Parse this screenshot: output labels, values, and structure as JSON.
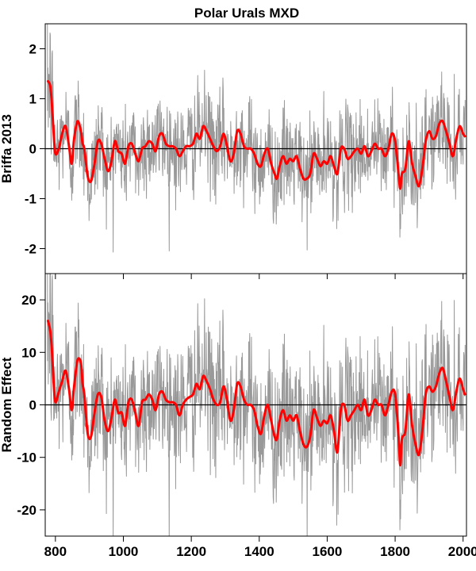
{
  "chart_data": [
    {
      "type": "line",
      "title": "Polar Urals MXD",
      "xlabel": "",
      "ylabel": "Briffa 2013",
      "xlim": [
        770,
        2010
      ],
      "ylim": [
        -2.5,
        2.5
      ],
      "xticks": [
        800,
        1000,
        1200,
        1400,
        1600,
        1800,
        2000
      ],
      "yticks": [
        -2,
        -1,
        0,
        1,
        2
      ],
      "zero_line": true,
      "grid": false,
      "series": [
        {
          "kind": "annual",
          "color": "#999999",
          "noise_sd": 0.5
        },
        {
          "kind": "smooth",
          "color": "#ff0000",
          "x": [
            778,
            785,
            790,
            795,
            800,
            810,
            820,
            830,
            840,
            848,
            855,
            865,
            875,
            880,
            885,
            895,
            905,
            915,
            925,
            935,
            945,
            955,
            965,
            975,
            985,
            995,
            1005,
            1015,
            1025,
            1035,
            1045,
            1055,
            1065,
            1075,
            1085,
            1095,
            1105,
            1115,
            1125,
            1135,
            1145,
            1155,
            1165,
            1175,
            1185,
            1195,
            1205,
            1215,
            1225,
            1235,
            1245,
            1255,
            1265,
            1275,
            1285,
            1295,
            1305,
            1315,
            1325,
            1335,
            1345,
            1355,
            1365,
            1375,
            1385,
            1395,
            1405,
            1415,
            1425,
            1435,
            1445,
            1452,
            1460,
            1470,
            1480,
            1490,
            1500,
            1510,
            1520,
            1530,
            1540,
            1550,
            1560,
            1570,
            1580,
            1590,
            1600,
            1610,
            1620,
            1630,
            1640,
            1650,
            1660,
            1670,
            1680,
            1690,
            1700,
            1710,
            1720,
            1730,
            1740,
            1750,
            1760,
            1770,
            1780,
            1790,
            1800,
            1810,
            1815,
            1820,
            1830,
            1840,
            1850,
            1860,
            1870,
            1880,
            1890,
            1900,
            1910,
            1920,
            1930,
            1940,
            1950,
            1960,
            1970,
            1980,
            1990,
            2000,
            2005
          ],
          "y": [
            1.35,
            1.25,
            0.85,
            0.3,
            -0.1,
            0.0,
            0.3,
            0.45,
            0.05,
            -0.3,
            0.2,
            0.55,
            0.35,
            0.1,
            0.0,
            -0.55,
            -0.65,
            -0.3,
            0.15,
            0.1,
            -0.2,
            -0.45,
            -0.25,
            0.15,
            -0.05,
            -0.1,
            -0.3,
            0.05,
            0.1,
            -0.1,
            -0.25,
            0.0,
            0.05,
            0.15,
            0.1,
            -0.05,
            0.25,
            0.3,
            0.1,
            0.05,
            0.05,
            0.0,
            -0.15,
            -0.05,
            0.05,
            0.05,
            0.1,
            0.3,
            0.2,
            0.45,
            0.35,
            0.2,
            0.05,
            -0.05,
            0.05,
            0.3,
            0.05,
            -0.25,
            -0.1,
            0.35,
            0.3,
            0.05,
            0.0,
            0.0,
            -0.1,
            -0.3,
            -0.35,
            -0.1,
            0.0,
            -0.3,
            -0.5,
            -0.6,
            -0.35,
            -0.15,
            -0.3,
            -0.2,
            -0.25,
            -0.15,
            -0.4,
            -0.6,
            -0.6,
            -0.5,
            -0.1,
            -0.2,
            -0.35,
            -0.25,
            -0.3,
            -0.15,
            -0.35,
            -0.5,
            0.0,
            0.0,
            -0.2,
            -0.15,
            -0.05,
            0.0,
            -0.1,
            0.05,
            -0.15,
            -0.05,
            0.1,
            0.0,
            0.0,
            -0.15,
            0.0,
            0.3,
            0.15,
            -0.5,
            -0.8,
            -0.5,
            -0.4,
            0.15,
            -0.3,
            -0.55,
            -0.75,
            -0.4,
            0.15,
            0.35,
            0.2,
            0.25,
            0.5,
            0.55,
            0.35,
            0.1,
            -0.15,
            0.2,
            0.45,
            0.3,
            0.25
          ]
        }
      ]
    },
    {
      "type": "line",
      "title": "",
      "xlabel": "",
      "ylabel": "Random Effect",
      "xlim": [
        770,
        2010
      ],
      "ylim": [
        -25,
        25
      ],
      "xticks": [
        800,
        1000,
        1200,
        1400,
        1600,
        1800,
        2000
      ],
      "yticks": [
        -20,
        -10,
        0,
        10,
        20
      ],
      "zero_line": true,
      "grid": false,
      "series": [
        {
          "kind": "annual",
          "color": "#999999",
          "noise_sd": 6.5
        },
        {
          "kind": "smooth",
          "color": "#ff0000",
          "x": [
            778,
            785,
            790,
            795,
            800,
            810,
            820,
            830,
            840,
            848,
            855,
            865,
            875,
            880,
            885,
            895,
            905,
            915,
            925,
            935,
            945,
            955,
            965,
            975,
            985,
            995,
            1005,
            1015,
            1025,
            1035,
            1045,
            1055,
            1065,
            1075,
            1085,
            1095,
            1105,
            1115,
            1125,
            1135,
            1145,
            1155,
            1165,
            1175,
            1185,
            1195,
            1205,
            1215,
            1225,
            1235,
            1245,
            1255,
            1265,
            1275,
            1285,
            1295,
            1305,
            1315,
            1325,
            1335,
            1345,
            1355,
            1365,
            1375,
            1385,
            1395,
            1405,
            1415,
            1425,
            1435,
            1445,
            1452,
            1460,
            1470,
            1480,
            1490,
            1500,
            1510,
            1520,
            1530,
            1540,
            1550,
            1560,
            1570,
            1580,
            1590,
            1600,
            1610,
            1620,
            1630,
            1640,
            1650,
            1660,
            1670,
            1680,
            1690,
            1700,
            1710,
            1720,
            1730,
            1740,
            1750,
            1760,
            1770,
            1780,
            1790,
            1800,
            1810,
            1815,
            1820,
            1830,
            1840,
            1850,
            1860,
            1870,
            1880,
            1890,
            1900,
            1910,
            1920,
            1930,
            1940,
            1950,
            1960,
            1970,
            1980,
            1990,
            2000,
            2005
          ],
          "y": [
            16,
            14,
            10,
            4,
            0.5,
            2.5,
            4.5,
            6.5,
            3,
            -1,
            3.5,
            8.5,
            8,
            4,
            2,
            -5.5,
            -6,
            -1.5,
            2,
            1.5,
            -3,
            -5,
            -2.5,
            1,
            -1.5,
            -1.5,
            -4,
            0.5,
            1,
            -1.5,
            -4,
            0.5,
            1,
            2,
            1,
            -1,
            2,
            2.5,
            1,
            0.5,
            0.5,
            0,
            -2,
            0,
            1,
            1.5,
            2,
            4,
            3,
            5.5,
            4.5,
            3,
            1,
            0,
            0.5,
            3.5,
            1,
            -3,
            -1,
            4,
            3.5,
            1,
            0,
            0,
            -1,
            -4,
            -5.5,
            -2,
            0,
            -3,
            -6,
            -6.5,
            -3,
            -1,
            -3,
            -2,
            -3,
            -2,
            -5,
            -7.5,
            -8,
            -6,
            -1,
            -2.5,
            -4,
            -3,
            -3.5,
            -2,
            -5,
            -9,
            -1,
            0,
            -3,
            -2,
            -1,
            0,
            -1,
            1,
            -2,
            -1,
            1,
            0,
            0,
            -2,
            0,
            2.5,
            2,
            -6,
            -11.5,
            -6.5,
            -5,
            2,
            -4,
            -7.5,
            -9.5,
            -5,
            2,
            3.5,
            2.5,
            3.5,
            6,
            7,
            4.5,
            1.5,
            -1,
            2.5,
            5,
            3,
            2
          ]
        }
      ]
    }
  ]
}
